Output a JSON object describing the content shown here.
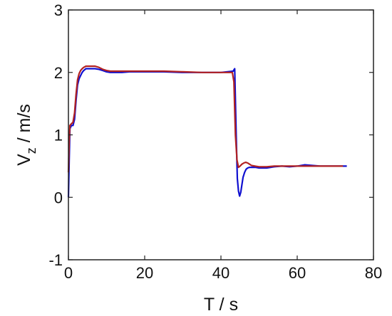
{
  "chart_data": {
    "type": "line",
    "xlabel": "T / s",
    "ylabel": {
      "main": "V",
      "sub": "z",
      "unit": " / m/s"
    },
    "xlim": [
      0,
      80
    ],
    "ylim": [
      -1,
      3
    ],
    "xticks": [
      0,
      20,
      40,
      60,
      80
    ],
    "yticks": [
      -1,
      0,
      1,
      2,
      3
    ],
    "xtick_labels": [
      "0",
      "20",
      "40",
      "60",
      "80"
    ],
    "ytick_labels": [
      "-1",
      "0",
      "1",
      "2",
      "3"
    ],
    "grid": false,
    "legend": "none",
    "series": [
      {
        "color": "#1010d0",
        "x": [
          0.0,
          0.2,
          0.4,
          0.8,
          1.2,
          1.6,
          2.0,
          2.4,
          2.8,
          3.2,
          3.6,
          4.0,
          4.6,
          5.2,
          6.0,
          7.0,
          8.0,
          9.0,
          10.0,
          11.0,
          12.0,
          14.0,
          16.0,
          18.0,
          20.0,
          25.0,
          30.0,
          35.0,
          40.0,
          43.2,
          43.6,
          44.0,
          44.3,
          44.6,
          44.9,
          45.2,
          45.5,
          45.8,
          46.2,
          46.6,
          47.0,
          47.5,
          48.0,
          49.0,
          50.0,
          52.0,
          54.0,
          56.0,
          58.0,
          60.0,
          62.0,
          64.0,
          66.0,
          68.0,
          70.0,
          72.0,
          73.0
        ],
        "y": [
          0.0,
          0.6,
          1.1,
          1.15,
          1.15,
          1.25,
          1.55,
          1.8,
          1.9,
          1.95,
          2.0,
          2.03,
          2.06,
          2.06,
          2.06,
          2.06,
          2.05,
          2.03,
          2.01,
          2.0,
          2.0,
          2.0,
          2.01,
          2.01,
          2.01,
          2.01,
          2.0,
          2.0,
          2.0,
          2.02,
          2.06,
          1.0,
          0.3,
          0.1,
          0.02,
          0.08,
          0.2,
          0.32,
          0.4,
          0.45,
          0.47,
          0.48,
          0.48,
          0.48,
          0.47,
          0.47,
          0.49,
          0.5,
          0.49,
          0.5,
          0.52,
          0.51,
          0.5,
          0.5,
          0.5,
          0.5,
          0.5
        ]
      },
      {
        "color": "#b22222",
        "x": [
          0.0,
          0.2,
          0.4,
          0.8,
          1.2,
          1.6,
          2.0,
          2.4,
          2.8,
          3.2,
          3.6,
          4.0,
          4.6,
          5.2,
          6.0,
          7.0,
          8.0,
          9.0,
          10.0,
          11.0,
          12.0,
          14.0,
          16.0,
          18.0,
          20.0,
          25.0,
          30.0,
          35.0,
          40.0,
          43.0,
          43.4,
          43.8,
          44.2,
          44.6,
          45.0,
          45.5,
          46.0,
          46.5,
          47.0,
          47.5,
          48.0,
          49.0,
          50.0,
          52.0,
          54.0,
          56.0,
          58.0,
          60.0,
          62.0,
          64.0,
          66.0,
          68.0,
          70.0,
          72.0
        ],
        "y": [
          0.4,
          0.9,
          1.15,
          1.18,
          1.2,
          1.35,
          1.65,
          1.88,
          1.98,
          2.03,
          2.06,
          2.08,
          2.1,
          2.1,
          2.1,
          2.1,
          2.08,
          2.05,
          2.03,
          2.02,
          2.02,
          2.02,
          2.02,
          2.02,
          2.02,
          2.02,
          2.01,
          2.0,
          2.0,
          2.0,
          1.85,
          1.0,
          0.6,
          0.48,
          0.5,
          0.53,
          0.55,
          0.56,
          0.55,
          0.53,
          0.51,
          0.5,
          0.49,
          0.49,
          0.5,
          0.5,
          0.5,
          0.5,
          0.5,
          0.5,
          0.5,
          0.5,
          0.5,
          0.5
        ]
      }
    ]
  }
}
